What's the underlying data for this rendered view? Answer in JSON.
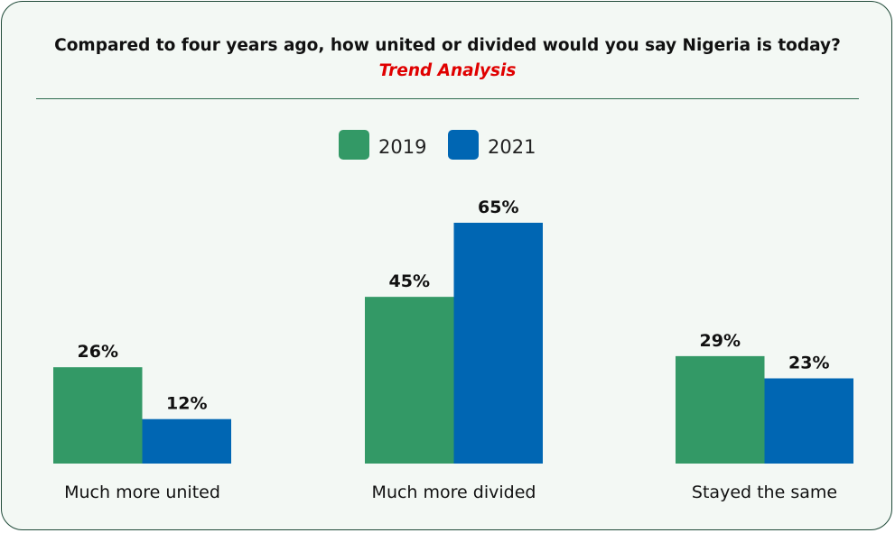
{
  "header": {
    "title": "Compared to four years ago, how united or divided would you say Nigeria is today?",
    "subtitle": "Trend Analysis",
    "subtitle_color": "#e00000"
  },
  "chart_data": {
    "type": "bar",
    "title": "Compared to four years ago, how united or divided would you say Nigeria is today?",
    "subtitle": "Trend Analysis",
    "categories": [
      "Much more united",
      "Much more divided",
      "Stayed the same"
    ],
    "series": [
      {
        "name": "2019",
        "values": [
          26,
          45,
          29
        ],
        "labels": [
          "26%",
          "45%",
          "29%"
        ],
        "color": "#339966"
      },
      {
        "name": "2021",
        "values": [
          12,
          65,
          23
        ],
        "labels": [
          "12%",
          "65%",
          "23%"
        ],
        "color": "#0066b3"
      }
    ],
    "ylim": [
      0,
      65
    ],
    "value_format": "percent",
    "legend_position": "top-center",
    "grid": false,
    "background_color": "#f3f8f4"
  }
}
